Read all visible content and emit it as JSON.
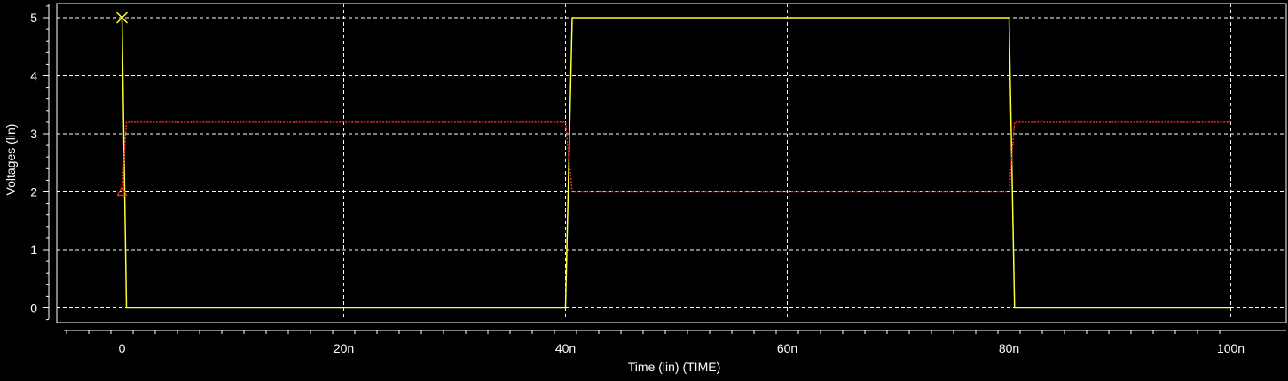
{
  "chart_data": {
    "type": "line",
    "xlabel": "Time (lin) (TIME)",
    "ylabel": "Voltages (lin)",
    "xlim": [
      -5,
      100
    ],
    "ylim": [
      -0.25,
      5.2
    ],
    "x_unit_suffix": "n",
    "x_ticks": [
      0,
      20,
      40,
      60,
      80,
      100
    ],
    "x_tick_labels": [
      "0",
      "20n",
      "40n",
      "60n",
      "80n",
      "100n"
    ],
    "y_ticks": [
      0,
      1,
      2,
      3,
      4,
      5
    ],
    "y_tick_labels": [
      "0",
      "1",
      "2",
      "3",
      "4",
      "5"
    ],
    "grid": true,
    "colors": {
      "background": "#000000",
      "grid": "#ffffff",
      "axis": "#ffffff"
    },
    "series": [
      {
        "color": "#ffff33",
        "marker": "x",
        "x": [
          0,
          0.4,
          40,
          40.6,
          80,
          80.5,
          100
        ],
        "y": [
          5,
          0,
          0,
          5,
          5,
          0,
          0
        ]
      },
      {
        "color": "#ff2a1a",
        "style": "dotted",
        "marker": "triangle",
        "x": [
          0,
          0.4,
          40,
          40.6,
          80,
          80.5,
          100
        ],
        "y": [
          2,
          3.2,
          3.2,
          2,
          2,
          3.2,
          3.2
        ]
      }
    ]
  }
}
